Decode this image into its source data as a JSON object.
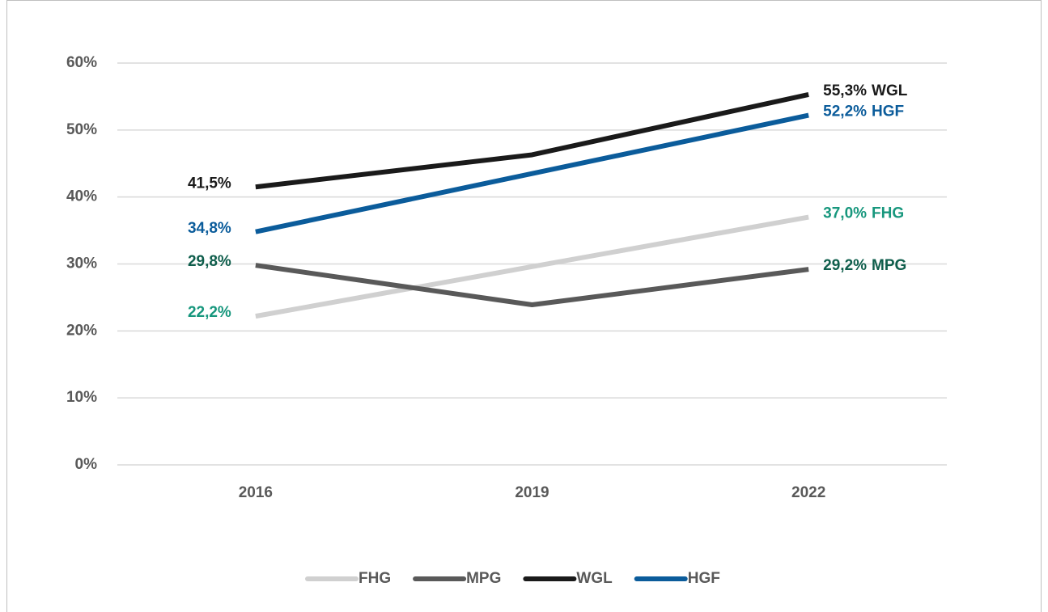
{
  "chart_data": {
    "type": "line",
    "categories": [
      "2016",
      "2019",
      "2022"
    ],
    "series": [
      {
        "name": "FHG",
        "color": "#d0d0d0",
        "label_color": "#17977d",
        "values": [
          22.2,
          29.6,
          37.0
        ],
        "value_labels": [
          "22,2%",
          null,
          "37,0%"
        ]
      },
      {
        "name": "MPG",
        "color": "#595959",
        "label_color": "#0f5e4c",
        "values": [
          29.8,
          23.9,
          29.2
        ],
        "value_labels": [
          "29,8%",
          null,
          "29,2%"
        ]
      },
      {
        "name": "WGL",
        "color": "#1a1a1a",
        "label_color": "#1a1a1a",
        "values": [
          41.5,
          46.3,
          55.3
        ],
        "value_labels": [
          "41,5%",
          null,
          "55,3%"
        ]
      },
      {
        "name": "HGF",
        "color": "#0b5c9b",
        "label_color": "#0b5c9b",
        "values": [
          34.8,
          43.5,
          52.2
        ],
        "value_labels": [
          "34,8%",
          null,
          "52,2%"
        ]
      }
    ],
    "ylim": [
      0,
      60
    ],
    "yticks": [
      {
        "value": 0,
        "label": "0%"
      },
      {
        "value": 10,
        "label": "10%"
      },
      {
        "value": 20,
        "label": "20%"
      },
      {
        "value": 30,
        "label": "30%"
      },
      {
        "value": 40,
        "label": "40%"
      },
      {
        "value": 50,
        "label": "50%"
      },
      {
        "value": 60,
        "label": "60%"
      }
    ],
    "grid": true,
    "legend": "bottom"
  }
}
